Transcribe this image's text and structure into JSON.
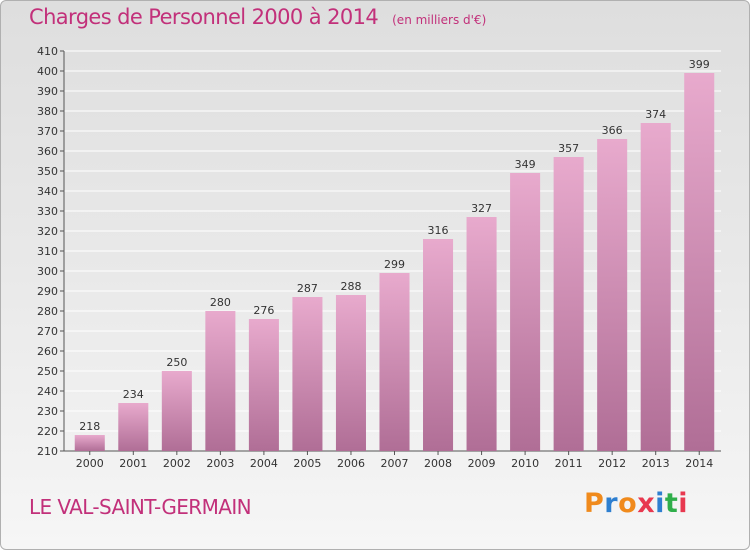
{
  "title": "Charges de Personnel 2000 à 2014",
  "subtitle": "(en milliers d'€)",
  "commune": "LE VAL-SAINT-GERMAIN",
  "logo": {
    "letters": [
      "P",
      "r",
      "o",
      "x",
      "i",
      "t",
      "i"
    ],
    "colors": [
      "#f08a1c",
      "#2e7fd0",
      "#f08a1c",
      "#e8384f",
      "#2e7fd0",
      "#2fae4a",
      "#e8384f"
    ]
  },
  "colors": {
    "accent": "#c2307a",
    "bar_top": "#e8aacd",
    "bar_bottom": "#b06e96",
    "grid": "#ffffff"
  },
  "chart_data": {
    "type": "bar",
    "title": "Charges de Personnel 2000 à 2014",
    "subtitle": "(en milliers d'€)",
    "categories": [
      "2000",
      "2001",
      "2002",
      "2003",
      "2004",
      "2005",
      "2006",
      "2007",
      "2008",
      "2009",
      "2010",
      "2011",
      "2012",
      "2013",
      "2014"
    ],
    "values": [
      218,
      234,
      250,
      280,
      276,
      287,
      288,
      299,
      316,
      327,
      349,
      357,
      366,
      374,
      399
    ],
    "ylim": [
      210,
      410
    ],
    "yticks": [
      210,
      220,
      230,
      240,
      250,
      260,
      270,
      280,
      290,
      300,
      310,
      320,
      330,
      340,
      350,
      360,
      370,
      380,
      390,
      400,
      410
    ],
    "grid": true,
    "legend": "none"
  }
}
